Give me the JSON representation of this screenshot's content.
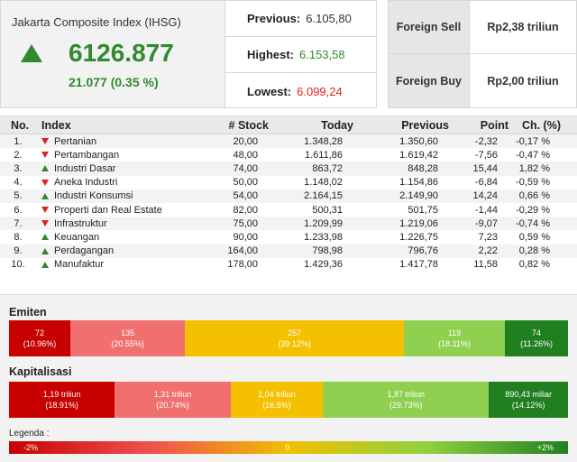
{
  "ihsg": {
    "title": "Jakarta Composite Index (IHSG)",
    "value": "6126.877",
    "change": "21.077 (0.35 %)",
    "direction": "up"
  },
  "stats": {
    "previous_label": "Previous:",
    "previous_value": "6.105,80",
    "highest_label": "Highest:",
    "highest_value": "6.153,58",
    "lowest_label": "Lowest:",
    "lowest_value": "6.099,24"
  },
  "foreign": {
    "sell_label": "Foreign Sell",
    "sell_value": "Rp2,38 triliun",
    "buy_label": "Foreign Buy",
    "buy_value": "Rp2,00 triliun"
  },
  "table": {
    "headers": {
      "no": "No.",
      "index": "Index",
      "stock": "# Stock",
      "today": "Today",
      "previous": "Previous",
      "point": "Point",
      "change": "Ch. (%)"
    },
    "rows": [
      {
        "no": "1.",
        "index": "Pertanian",
        "dir": "down",
        "stock": "20,00",
        "today": "1.348,28",
        "previous": "1.350,60",
        "point": "-2,32",
        "change": "-0,17 %"
      },
      {
        "no": "2.",
        "index": "Pertambangan",
        "dir": "down",
        "stock": "48,00",
        "today": "1.611,86",
        "previous": "1.619,42",
        "point": "-7,56",
        "change": "-0,47 %"
      },
      {
        "no": "3.",
        "index": "Industri Dasar",
        "dir": "up",
        "stock": "74,00",
        "today": "863,72",
        "previous": "848,28",
        "point": "15,44",
        "change": "1,82 %"
      },
      {
        "no": "4.",
        "index": "Aneka Industri",
        "dir": "down",
        "stock": "50,00",
        "today": "1.148,02",
        "previous": "1.154,86",
        "point": "-6,84",
        "change": "-0,59 %"
      },
      {
        "no": "5.",
        "index": "Industri Konsumsi",
        "dir": "up",
        "stock": "54,00",
        "today": "2.164,15",
        "previous": "2.149,90",
        "point": "14,24",
        "change": "0,66 %"
      },
      {
        "no": "6.",
        "index": "Properti dan Real Estate",
        "dir": "down",
        "stock": "82,00",
        "today": "500,31",
        "previous": "501,75",
        "point": "-1,44",
        "change": "-0,29 %"
      },
      {
        "no": "7.",
        "index": "Infrastruktur",
        "dir": "down",
        "stock": "75,00",
        "today": "1.209,99",
        "previous": "1.219,06",
        "point": "-9,07",
        "change": "-0,74 %"
      },
      {
        "no": "8.",
        "index": "Keuangan",
        "dir": "up",
        "stock": "90,00",
        "today": "1.233,98",
        "previous": "1.226,75",
        "point": "7,23",
        "change": "0,59 %"
      },
      {
        "no": "9.",
        "index": "Perdagangan",
        "dir": "up",
        "stock": "164,00",
        "today": "798,98",
        "previous": "796,76",
        "point": "2,22",
        "change": "0,28 %"
      },
      {
        "no": "10.",
        "index": "Manufaktur",
        "dir": "up",
        "stock": "178,00",
        "today": "1.429,36",
        "previous": "1.417,78",
        "point": "11,58",
        "change": "0,82 %"
      }
    ]
  },
  "emiten": {
    "title": "Emiten",
    "segments": [
      {
        "value": "72",
        "pct": "(10.96%)",
        "share": 10.96,
        "color": "#c80000"
      },
      {
        "value": "135",
        "pct": "(20.55%)",
        "share": 20.55,
        "color": "#f07070"
      },
      {
        "value": "257",
        "pct": "(39.12%)",
        "share": 39.12,
        "color": "#f5c000"
      },
      {
        "value": "119",
        "pct": "(18.11%)",
        "share": 18.11,
        "color": "#90d050"
      },
      {
        "value": "74",
        "pct": "(11.26%)",
        "share": 11.26,
        "color": "#208020"
      }
    ]
  },
  "kapitalisasi": {
    "title": "Kapitalisasi",
    "segments": [
      {
        "value": "1,19 triliun",
        "pct": "(18.91%)",
        "share": 18.91,
        "color": "#c80000"
      },
      {
        "value": "1,31 triliun",
        "pct": "(20.74%)",
        "share": 20.74,
        "color": "#f07070"
      },
      {
        "value": "1,04 triliun",
        "pct": "(16.5%)",
        "share": 16.5,
        "color": "#f5c000"
      },
      {
        "value": "1,87 triliun",
        "pct": "(29.73%)",
        "share": 29.73,
        "color": "#90d050"
      },
      {
        "value": "890,43 miliar",
        "pct": "(14.12%)",
        "share": 14.12,
        "color": "#208020"
      }
    ]
  },
  "legend": {
    "title": "Legenda :",
    "low": "-2%",
    "mid": "0",
    "high": "+2%"
  }
}
